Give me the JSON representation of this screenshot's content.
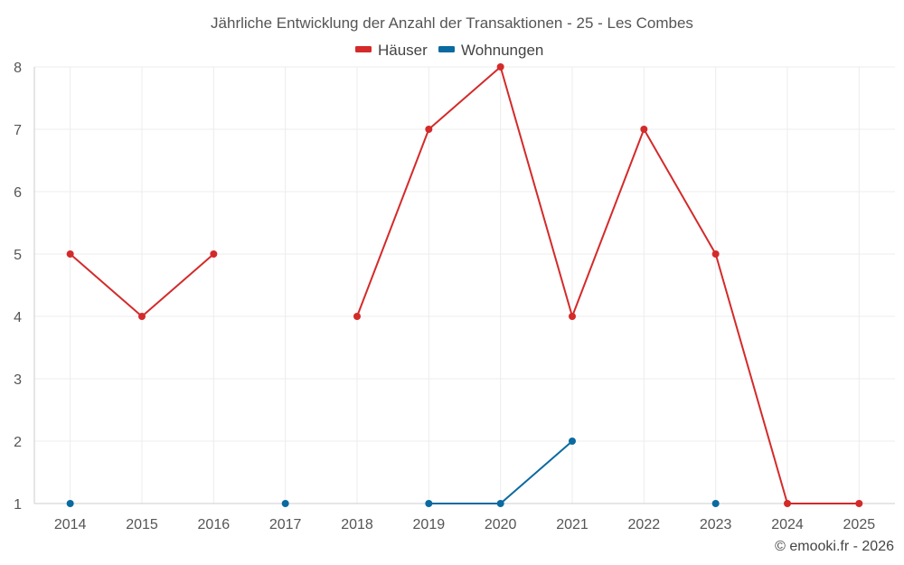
{
  "chart_data": {
    "type": "line",
    "title": "Jährliche Entwicklung der Anzahl der Transaktionen - 25 - Les Combes",
    "categories": [
      "2014",
      "2015",
      "2016",
      "2017",
      "2018",
      "2019",
      "2020",
      "2021",
      "2022",
      "2023",
      "2024",
      "2025"
    ],
    "ylim": [
      1,
      8
    ],
    "yticks": [
      "1",
      "2",
      "3",
      "4",
      "5",
      "6",
      "7",
      "8"
    ],
    "grid": true,
    "legend_position": "top-center",
    "series": [
      {
        "name": "Häuser",
        "color": "#d42a2a",
        "values": [
          5,
          4,
          5,
          null,
          4,
          7,
          8,
          4,
          7,
          5,
          1,
          1
        ]
      },
      {
        "name": "Wohnungen",
        "color": "#0a6aa1",
        "values": [
          1,
          null,
          null,
          1,
          null,
          1,
          1,
          2,
          null,
          1,
          null,
          null
        ]
      }
    ]
  },
  "credit": "© emooki.fr - 2026"
}
